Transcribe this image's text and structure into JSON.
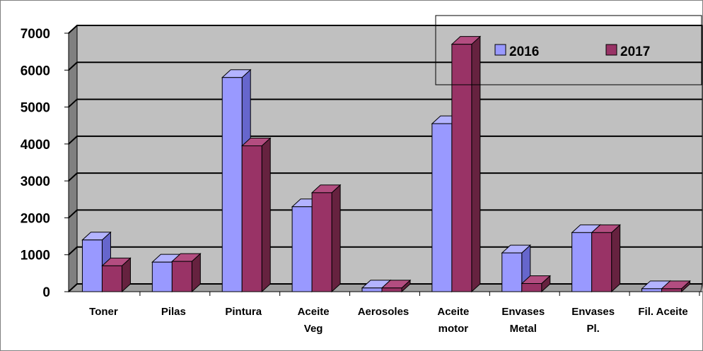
{
  "colors": {
    "plot_back": "#c0c0c0",
    "plot_wall_side": "#808080",
    "plot_floor": "#a0a0a0",
    "gridline": "#000000",
    "border": "#808080"
  },
  "chart_data": {
    "type": "bar",
    "title": "",
    "xlabel": "",
    "ylabel": "",
    "three_d": true,
    "grid": true,
    "legend_position": "top-right",
    "ylim": [
      0,
      7000
    ],
    "yticks": [
      "0",
      "1000",
      "2000",
      "3000",
      "4000",
      "5000",
      "6000",
      "7000"
    ],
    "categories": [
      [
        "Toner"
      ],
      [
        "Pilas"
      ],
      [
        "Pintura"
      ],
      [
        "Aceite",
        "Veg"
      ],
      [
        "Aerosoles"
      ],
      [
        "Aceite",
        "motor"
      ],
      [
        "Envases",
        "Metal"
      ],
      [
        "Envases",
        "Pl."
      ],
      [
        "Fil. Aceite"
      ]
    ],
    "series": [
      {
        "name": "2016",
        "color": "#9999ff",
        "side_color": "#6666cc",
        "top_color": "#b3b3ff",
        "values": [
          1400,
          800,
          5800,
          2300,
          100,
          4550,
          1050,
          1600,
          80
        ]
      },
      {
        "name": "2017",
        "color": "#993366",
        "side_color": "#66223f",
        "top_color": "#b34d80",
        "values": [
          700,
          820,
          3950,
          2680,
          100,
          6700,
          220,
          1600,
          80
        ]
      }
    ]
  }
}
